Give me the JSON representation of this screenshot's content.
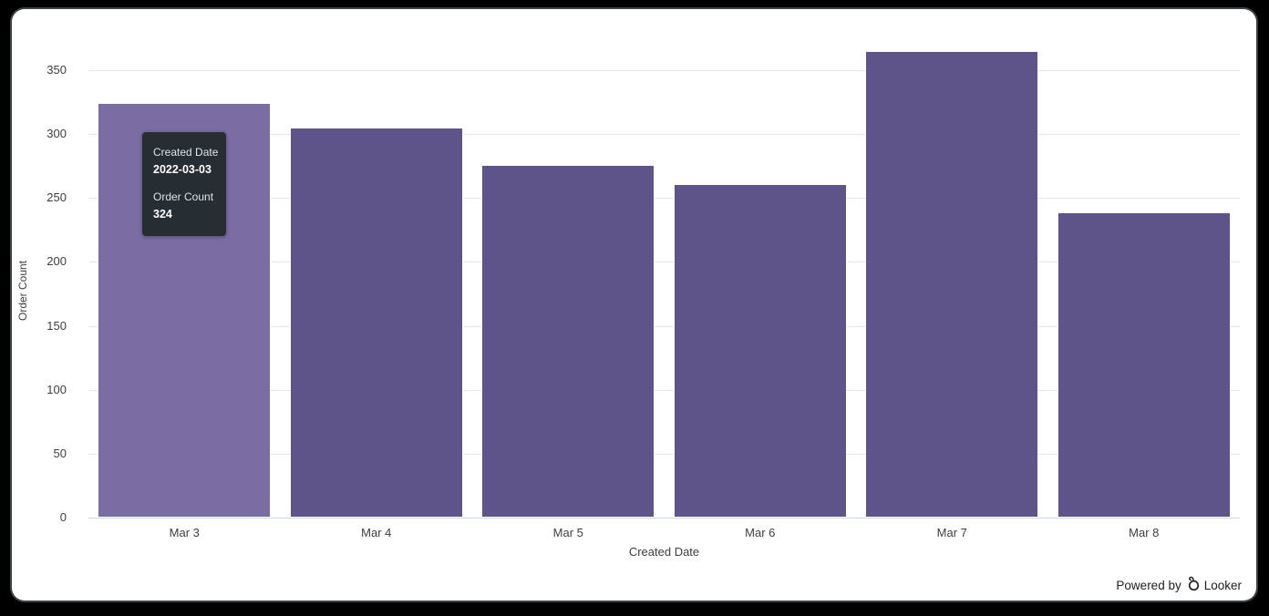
{
  "window": {
    "background": "#000000",
    "panel_background": "#ffffff"
  },
  "chart_data": {
    "type": "bar",
    "title": "",
    "categories": [
      "Mar 3",
      "Mar 4",
      "Mar 5",
      "Mar 6",
      "Mar 7",
      "Mar 8"
    ],
    "values": [
      324,
      305,
      276,
      261,
      365,
      239
    ],
    "xlabel": "Created Date",
    "ylabel": "Order Count",
    "ylim": [
      0,
      350
    ],
    "yticks": [
      0,
      50,
      100,
      150,
      200,
      250,
      300,
      350
    ],
    "grid": true,
    "legend": "none",
    "bar_color": "#5F5489",
    "bar_hover_color": "#7A6DA3",
    "hovered_index": 0,
    "gridline_color": "#e6e6e6",
    "axis_line_color": "#ccd6eb",
    "tick_label_color": "#3c4043"
  },
  "tooltip": {
    "background": "#262d33",
    "dimension_label": "Created Date",
    "dimension_value": "2022-03-03",
    "measure_label": "Order Count",
    "measure_value": "324"
  },
  "footer": {
    "powered_by_label": "Powered by",
    "brand_label": "Looker"
  }
}
